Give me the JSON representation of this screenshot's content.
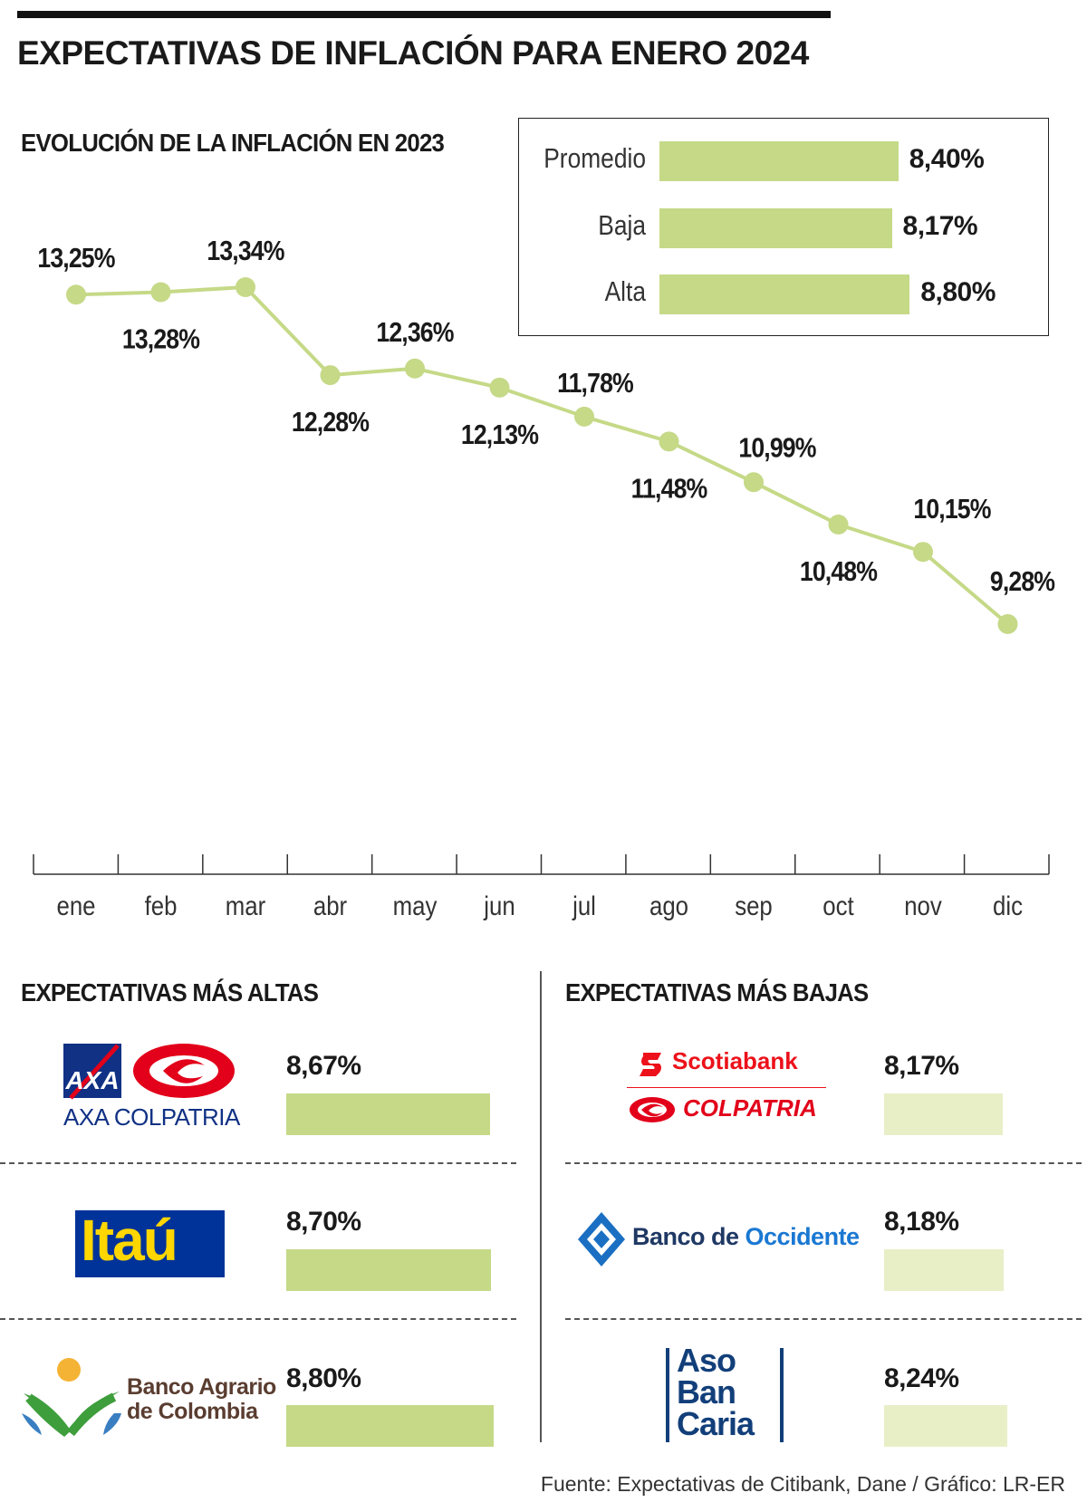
{
  "title": "EXPECTATIVAS DE INFLACIÓN PARA ENERO 2024",
  "line_title": "EVOLUCIÓN DE LA INFLACIÓN EN 2023",
  "summary": [
    {
      "label": "Promedio",
      "value": 8.4,
      "text": "8,40%"
    },
    {
      "label": "Baja",
      "value": 8.17,
      "text": "8,17%"
    },
    {
      "label": "Alta",
      "value": 8.8,
      "text": "8,80%"
    }
  ],
  "high_title": "EXPECTATIVAS MÁS ALTAS",
  "low_title": "EXPECTATIVAS MÁS BAJAS",
  "high_banks": [
    {
      "name": "AXA COLPATRIA",
      "value": 8.67,
      "text": "8,67%"
    },
    {
      "name": "Itaú",
      "value": 8.7,
      "text": "8,70%"
    },
    {
      "name": "Banco Agrario de Colombia",
      "value": 8.8,
      "text": "8,80%"
    }
  ],
  "low_banks": [
    {
      "name": "Scotiabank Colpatria",
      "value": 8.17,
      "text": "8,17%"
    },
    {
      "name": "Banco de Occidente",
      "value": 8.18,
      "text": "8,18%"
    },
    {
      "name": "AsoBanCaria",
      "value": 8.24,
      "text": "8,24%"
    }
  ],
  "logos": {
    "axa_mark": "AXA",
    "axa_text": "AXA COLPATRIA",
    "itau": "Itaú",
    "agrario_line1": "Banco Agrario",
    "agrario_line2": "de Colombia",
    "scotiabank": "Scotiabank",
    "colpatria": "COLPATRIA",
    "occidente_a": "Banco de ",
    "occidente_b": "Occidente",
    "aso1": "Aso",
    "aso2": "Ban",
    "aso3": "Caria"
  },
  "source": "Fuente: Expectativas de Citibank, Dane / Gráfico: LR-ER",
  "colors": {
    "line": "#c5d987",
    "bar_high": "#c5d987",
    "bar_low": "#e8efc7",
    "text": "#1a1a1a"
  },
  "chart_data": [
    {
      "type": "line",
      "title": "EVOLUCIÓN DE LA INFLACIÓN EN 2023",
      "categories": [
        "ene",
        "feb",
        "mar",
        "abr",
        "may",
        "jun",
        "jul",
        "ago",
        "sep",
        "oct",
        "nov",
        "dic"
      ],
      "values": [
        13.25,
        13.28,
        13.34,
        12.28,
        12.36,
        12.13,
        11.78,
        11.48,
        10.99,
        10.48,
        10.15,
        9.28
      ],
      "labels": [
        "13,25%",
        "13,28%",
        "13,34%",
        "12,28%",
        "12,36%",
        "12,13%",
        "11,78%",
        "11,48%",
        "10,99%",
        "10,48%",
        "10,15%",
        "9,28%"
      ],
      "label_pos": [
        "above",
        "below",
        "above",
        "below",
        "above",
        "below",
        "above",
        "below",
        "above",
        "below",
        "above",
        "above"
      ],
      "ylim": [
        9.0,
        13.5
      ],
      "grid": false
    },
    {
      "type": "bar",
      "categories": [
        "Promedio",
        "Baja",
        "Alta"
      ],
      "values": [
        8.4,
        8.17,
        8.8
      ]
    },
    {
      "type": "bar",
      "title": "EXPECTATIVAS MÁS ALTAS",
      "categories": [
        "AXA COLPATRIA",
        "Itaú",
        "Banco Agrario de Colombia"
      ],
      "values": [
        8.67,
        8.7,
        8.8
      ]
    },
    {
      "type": "bar",
      "title": "EXPECTATIVAS MÁS BAJAS",
      "categories": [
        "Scotiabank Colpatria",
        "Banco de Occidente",
        "AsoBanCaria"
      ],
      "values": [
        8.17,
        8.18,
        8.24
      ]
    }
  ]
}
